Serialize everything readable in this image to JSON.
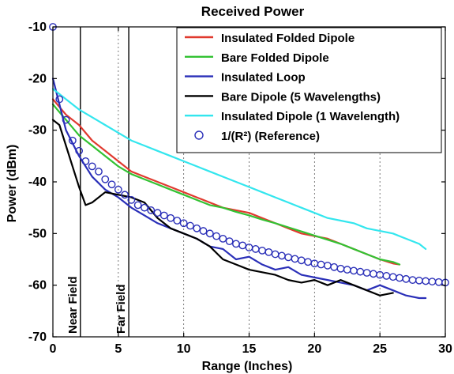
{
  "chart_data": {
    "type": "line",
    "title": "Received Power",
    "xlabel": "Range (Inches)",
    "ylabel": "Power (dBm)",
    "xlim": [
      0,
      30
    ],
    "ylim": [
      -70,
      -10
    ],
    "x_ticks": [
      0,
      5,
      10,
      15,
      20,
      25,
      30
    ],
    "y_ticks": [
      -70,
      -60,
      -50,
      -40,
      -30,
      -20,
      -10
    ],
    "grid": "x-only",
    "legend_position": "top-right",
    "series": [
      {
        "name": "Insulated Folded Dipole",
        "color": "#e03a2f",
        "style": "line",
        "points": [
          [
            0,
            -24
          ],
          [
            1,
            -27
          ],
          [
            2,
            -29
          ],
          [
            3,
            -32
          ],
          [
            4,
            -34
          ],
          [
            5,
            -36
          ],
          [
            6,
            -38
          ],
          [
            7,
            -39
          ],
          [
            8,
            -40
          ],
          [
            9,
            -41
          ],
          [
            10,
            -42
          ],
          [
            11,
            -43
          ],
          [
            12,
            -44
          ],
          [
            13,
            -45
          ],
          [
            14,
            -45.5
          ],
          [
            15,
            -46
          ],
          [
            16,
            -47
          ],
          [
            17,
            -48
          ],
          [
            18,
            -49
          ],
          [
            19,
            -50
          ],
          [
            20,
            -50.5
          ],
          [
            21,
            -51
          ],
          [
            22,
            -52
          ],
          [
            23,
            -53
          ],
          [
            24,
            -54
          ],
          [
            25,
            -55
          ],
          [
            26,
            -55.8
          ],
          [
            26.5,
            -56
          ]
        ]
      },
      {
        "name": "Bare Folded Dipole",
        "color": "#33c233",
        "style": "line",
        "points": [
          [
            0,
            -25
          ],
          [
            1,
            -28
          ],
          [
            2,
            -31
          ],
          [
            3,
            -33
          ],
          [
            4,
            -35
          ],
          [
            5,
            -37
          ],
          [
            6,
            -38.5
          ],
          [
            7,
            -39.5
          ],
          [
            8,
            -40.5
          ],
          [
            9,
            -41.5
          ],
          [
            10,
            -42.5
          ],
          [
            11,
            -43.5
          ],
          [
            12,
            -44.5
          ],
          [
            13,
            -45
          ],
          [
            14,
            -45.8
          ],
          [
            15,
            -46.5
          ],
          [
            16,
            -47.3
          ],
          [
            17,
            -48
          ],
          [
            18,
            -48.8
          ],
          [
            19,
            -49.6
          ],
          [
            20,
            -50.4
          ],
          [
            21,
            -51.2
          ],
          [
            22,
            -52
          ],
          [
            23,
            -53
          ],
          [
            24,
            -54
          ],
          [
            25,
            -55
          ],
          [
            26,
            -55.5
          ],
          [
            26.5,
            -56
          ]
        ]
      },
      {
        "name": "Insulated Loop",
        "color": "#2a2fb8",
        "style": "line",
        "points": [
          [
            0,
            -20
          ],
          [
            1,
            -30
          ],
          [
            2,
            -35
          ],
          [
            3,
            -39
          ],
          [
            4,
            -41.5
          ],
          [
            5,
            -43
          ],
          [
            6,
            -45
          ],
          [
            7,
            -46.5
          ],
          [
            8,
            -48
          ],
          [
            9,
            -49
          ],
          [
            10,
            -50
          ],
          [
            11,
            -51
          ],
          [
            12,
            -52.5
          ],
          [
            13,
            -53
          ],
          [
            14,
            -55
          ],
          [
            15,
            -54.5
          ],
          [
            16,
            -56
          ],
          [
            17,
            -57
          ],
          [
            18,
            -56.5
          ],
          [
            19,
            -58
          ],
          [
            20,
            -58.5
          ],
          [
            21,
            -59
          ],
          [
            22,
            -59.5
          ],
          [
            23,
            -60
          ],
          [
            24,
            -61
          ],
          [
            25,
            -60
          ],
          [
            26,
            -61
          ],
          [
            27,
            -62
          ],
          [
            28,
            -62.5
          ],
          [
            28.5,
            -62.5
          ]
        ]
      },
      {
        "name": "Bare Dipole (5 Wavelengths)",
        "color": "#000000",
        "style": "line",
        "points": [
          [
            0,
            -28
          ],
          [
            0.5,
            -29
          ],
          [
            1,
            -33
          ],
          [
            1.5,
            -37
          ],
          [
            2,
            -41
          ],
          [
            2.5,
            -44.5
          ],
          [
            3,
            -44
          ],
          [
            4,
            -42
          ],
          [
            5,
            -42.5
          ],
          [
            6,
            -43
          ],
          [
            7,
            -44
          ],
          [
            8,
            -47
          ],
          [
            9,
            -49
          ],
          [
            10,
            -50
          ],
          [
            11,
            -51
          ],
          [
            12,
            -52.5
          ],
          [
            13,
            -55
          ],
          [
            14,
            -56
          ],
          [
            15,
            -57
          ],
          [
            16,
            -57.5
          ],
          [
            17,
            -58
          ],
          [
            18,
            -59
          ],
          [
            19,
            -59.5
          ],
          [
            20,
            -59
          ],
          [
            21,
            -60
          ],
          [
            22,
            -59
          ],
          [
            23,
            -60
          ],
          [
            24,
            -61
          ],
          [
            25,
            -62
          ],
          [
            26,
            -61.5
          ]
        ]
      },
      {
        "name": "Insulated Dipole (1 Wavelength)",
        "color": "#33e6ee",
        "style": "line",
        "points": [
          [
            0,
            -22
          ],
          [
            1,
            -24
          ],
          [
            2,
            -26
          ],
          [
            3,
            -27.5
          ],
          [
            4,
            -29
          ],
          [
            5,
            -30.5
          ],
          [
            6,
            -32
          ],
          [
            7,
            -33
          ],
          [
            8,
            -34
          ],
          [
            9,
            -35
          ],
          [
            10,
            -36
          ],
          [
            11,
            -37
          ],
          [
            12,
            -38
          ],
          [
            13,
            -39
          ],
          [
            14,
            -40
          ],
          [
            15,
            -41
          ],
          [
            16,
            -42
          ],
          [
            17,
            -43
          ],
          [
            18,
            -44
          ],
          [
            19,
            -45
          ],
          [
            20,
            -46
          ],
          [
            21,
            -47
          ],
          [
            22,
            -47.5
          ],
          [
            23,
            -48
          ],
          [
            24,
            -49
          ],
          [
            25,
            -49.5
          ],
          [
            26,
            -50
          ],
          [
            27,
            -51
          ],
          [
            28,
            -52
          ],
          [
            28.5,
            -53
          ]
        ]
      },
      {
        "name": "1/(R²) (Reference)",
        "color": "#2a2fb8",
        "style": "marker",
        "points": [
          [
            0,
            -10
          ],
          [
            0.5,
            -24
          ],
          [
            1,
            -28
          ],
          [
            1.5,
            -32
          ],
          [
            2,
            -34
          ],
          [
            2.5,
            -36
          ],
          [
            3,
            -37
          ],
          [
            3.5,
            -38
          ],
          [
            4,
            -39.5
          ],
          [
            4.5,
            -40.5
          ],
          [
            5,
            -41.5
          ],
          [
            5.5,
            -42.5
          ],
          [
            6,
            -43.5
          ],
          [
            6.5,
            -44.5
          ],
          [
            7,
            -45
          ],
          [
            7.5,
            -45.5
          ],
          [
            8,
            -46
          ],
          [
            8.5,
            -46.5
          ],
          [
            9,
            -47
          ],
          [
            9.5,
            -47.5
          ],
          [
            10,
            -48
          ],
          [
            10.5,
            -48.5
          ],
          [
            11,
            -49
          ],
          [
            11.5,
            -49.5
          ],
          [
            12,
            -50
          ],
          [
            12.5,
            -50.5
          ],
          [
            13,
            -51
          ],
          [
            13.5,
            -51.5
          ],
          [
            14,
            -52
          ],
          [
            14.5,
            -52.3
          ],
          [
            15,
            -52.7
          ],
          [
            15.5,
            -53
          ],
          [
            16,
            -53.3
          ],
          [
            16.5,
            -53.6
          ],
          [
            17,
            -54
          ],
          [
            17.5,
            -54.3
          ],
          [
            18,
            -54.6
          ],
          [
            18.5,
            -54.9
          ],
          [
            19,
            -55.2
          ],
          [
            19.5,
            -55.5
          ],
          [
            20,
            -55.8
          ],
          [
            20.5,
            -56
          ],
          [
            21,
            -56.2
          ],
          [
            21.5,
            -56.5
          ],
          [
            22,
            -56.8
          ],
          [
            22.5,
            -57
          ],
          [
            23,
            -57.2
          ],
          [
            23.5,
            -57.4
          ],
          [
            24,
            -57.6
          ],
          [
            24.5,
            -57.8
          ],
          [
            25,
            -58
          ],
          [
            25.5,
            -58.2
          ],
          [
            26,
            -58.4
          ],
          [
            26.5,
            -58.6
          ],
          [
            27,
            -58.8
          ],
          [
            27.5,
            -59
          ],
          [
            28,
            -59.1
          ],
          [
            28.5,
            -59.2
          ],
          [
            29,
            -59.3
          ],
          [
            29.5,
            -59.4
          ],
          [
            30,
            -59.5
          ]
        ]
      }
    ],
    "legend_items": [
      "Insulated Folded Dipole",
      "Bare Folded Dipole",
      "Insulated Loop",
      "Bare Dipole (5 Wavelengths)",
      "Insulated Dipole (1 Wavelength)",
      "1/(R²) (Reference)"
    ],
    "annotations": [
      {
        "x": 2.1,
        "label": "Near Field"
      },
      {
        "x": 5.8,
        "label": "Far Field"
      }
    ]
  }
}
